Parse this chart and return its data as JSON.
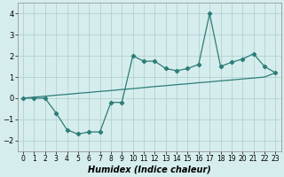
{
  "xlabel": "Humidex (Indice chaleur)",
  "x": [
    0,
    1,
    2,
    3,
    4,
    5,
    6,
    7,
    8,
    9,
    10,
    11,
    12,
    13,
    14,
    15,
    16,
    17,
    18,
    19,
    20,
    21,
    22,
    23
  ],
  "line1_y": [
    0.0,
    0.0,
    0.0,
    -0.7,
    -1.5,
    -1.7,
    -1.6,
    -1.6,
    -0.2,
    -0.2,
    2.0,
    1.75,
    1.75,
    1.4,
    1.3,
    1.4,
    1.6,
    4.0,
    1.5,
    1.7,
    1.85,
    2.1,
    1.5,
    1.2
  ],
  "line2_y": [
    0.0,
    0.05,
    0.09,
    0.14,
    0.18,
    0.23,
    0.27,
    0.32,
    0.36,
    0.41,
    0.45,
    0.5,
    0.55,
    0.59,
    0.64,
    0.68,
    0.73,
    0.77,
    0.82,
    0.86,
    0.91,
    0.95,
    1.0,
    1.2
  ],
  "line_color": "#2d7d78",
  "bg_color": "#d6eded",
  "grid_color": "#aacccc",
  "ylim": [
    -2.5,
    4.5
  ],
  "xlim": [
    -0.5,
    23.5
  ],
  "yticks": [
    -2,
    -1,
    0,
    1,
    2,
    3,
    4
  ],
  "xticks": [
    0,
    1,
    2,
    3,
    4,
    5,
    6,
    7,
    8,
    9,
    10,
    11,
    12,
    13,
    14,
    15,
    16,
    17,
    18,
    19,
    20,
    21,
    22,
    23
  ],
  "tick_fontsize": 5.5,
  "xlabel_fontsize": 7.0
}
